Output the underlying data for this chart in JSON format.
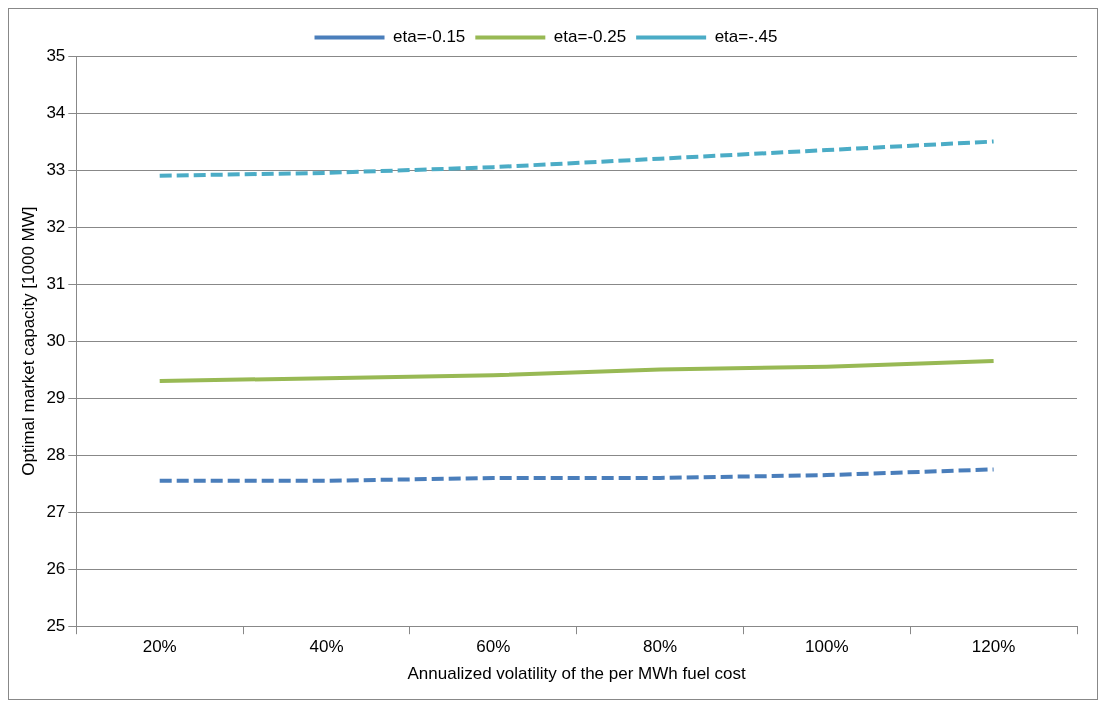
{
  "chart_data": {
    "type": "line",
    "xlabel": "Annualized volatility of the per MWh fuel cost",
    "ylabel": "Optimal market capacity [1000 MW]",
    "categories": [
      "20%",
      "40%",
      "60%",
      "80%",
      "100%",
      "120%"
    ],
    "series": [
      {
        "name": "eta=-0.15",
        "color": "#4a7ebb",
        "line_style": "dashed",
        "values": [
          27.55,
          27.55,
          27.6,
          27.6,
          27.65,
          27.75
        ]
      },
      {
        "name": "eta=-0.25",
        "color": "#98b954",
        "line_style": "solid",
        "values": [
          29.3,
          29.35,
          29.4,
          29.5,
          29.55,
          29.65
        ]
      },
      {
        "name": "eta=-.45",
        "color": "#4bacc6",
        "line_style": "dashed",
        "values": [
          32.9,
          32.95,
          33.05,
          33.2,
          33.35,
          33.5
        ]
      }
    ],
    "ylim": [
      25,
      35
    ],
    "yticks": [
      25,
      26,
      27,
      28,
      29,
      30,
      31,
      32,
      33,
      34,
      35
    ],
    "grid": "y",
    "legend": "top",
    "marker": "none"
  }
}
